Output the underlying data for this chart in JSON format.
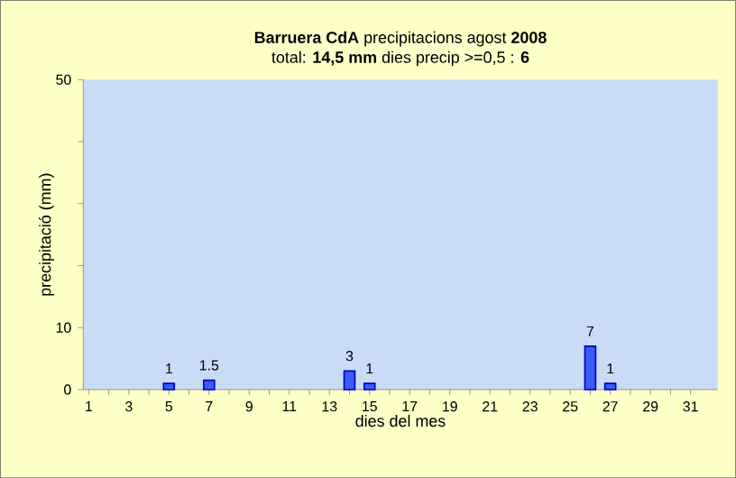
{
  "chart_data": {
    "type": "bar",
    "title": "**Barruera CdA**  precipitacions  agost **2008**",
    "subtitle": "total: **14,5 mm** dies precip >=0,5  : **6**",
    "xlabel": "dies del mes",
    "ylabel": "precipitació  (mm)",
    "categories": [
      "1",
      null,
      "3",
      null,
      "5",
      null,
      "7",
      null,
      "9",
      null,
      "11",
      null,
      "13",
      null,
      "15",
      null,
      "17",
      null,
      "19",
      null,
      "21",
      null,
      "23",
      null,
      "25",
      null,
      "27",
      null,
      "29",
      null,
      "31"
    ],
    "values": [
      0,
      0,
      0,
      0,
      1,
      0,
      1.5,
      0,
      0,
      0,
      0,
      0,
      0,
      3,
      1,
      0,
      0,
      0,
      0,
      0,
      0,
      0,
      0,
      0,
      0,
      7,
      1,
      0,
      0,
      0,
      0
    ],
    "value_labels": [
      null,
      null,
      null,
      null,
      "1",
      null,
      "1.5",
      null,
      null,
      null,
      null,
      null,
      null,
      "3",
      "1",
      null,
      null,
      null,
      null,
      null,
      null,
      null,
      null,
      null,
      null,
      "7",
      "1",
      null,
      null,
      null,
      null
    ],
    "color": "#3a5cf5",
    "ylim": [
      0,
      50
    ],
    "yticks": [
      0,
      10,
      {
        "value": 20,
        "label": null
      },
      {
        "value": 30,
        "label": null
      },
      {
        "value": 40,
        "label": null
      },
      50
    ],
    "grid": false
  }
}
